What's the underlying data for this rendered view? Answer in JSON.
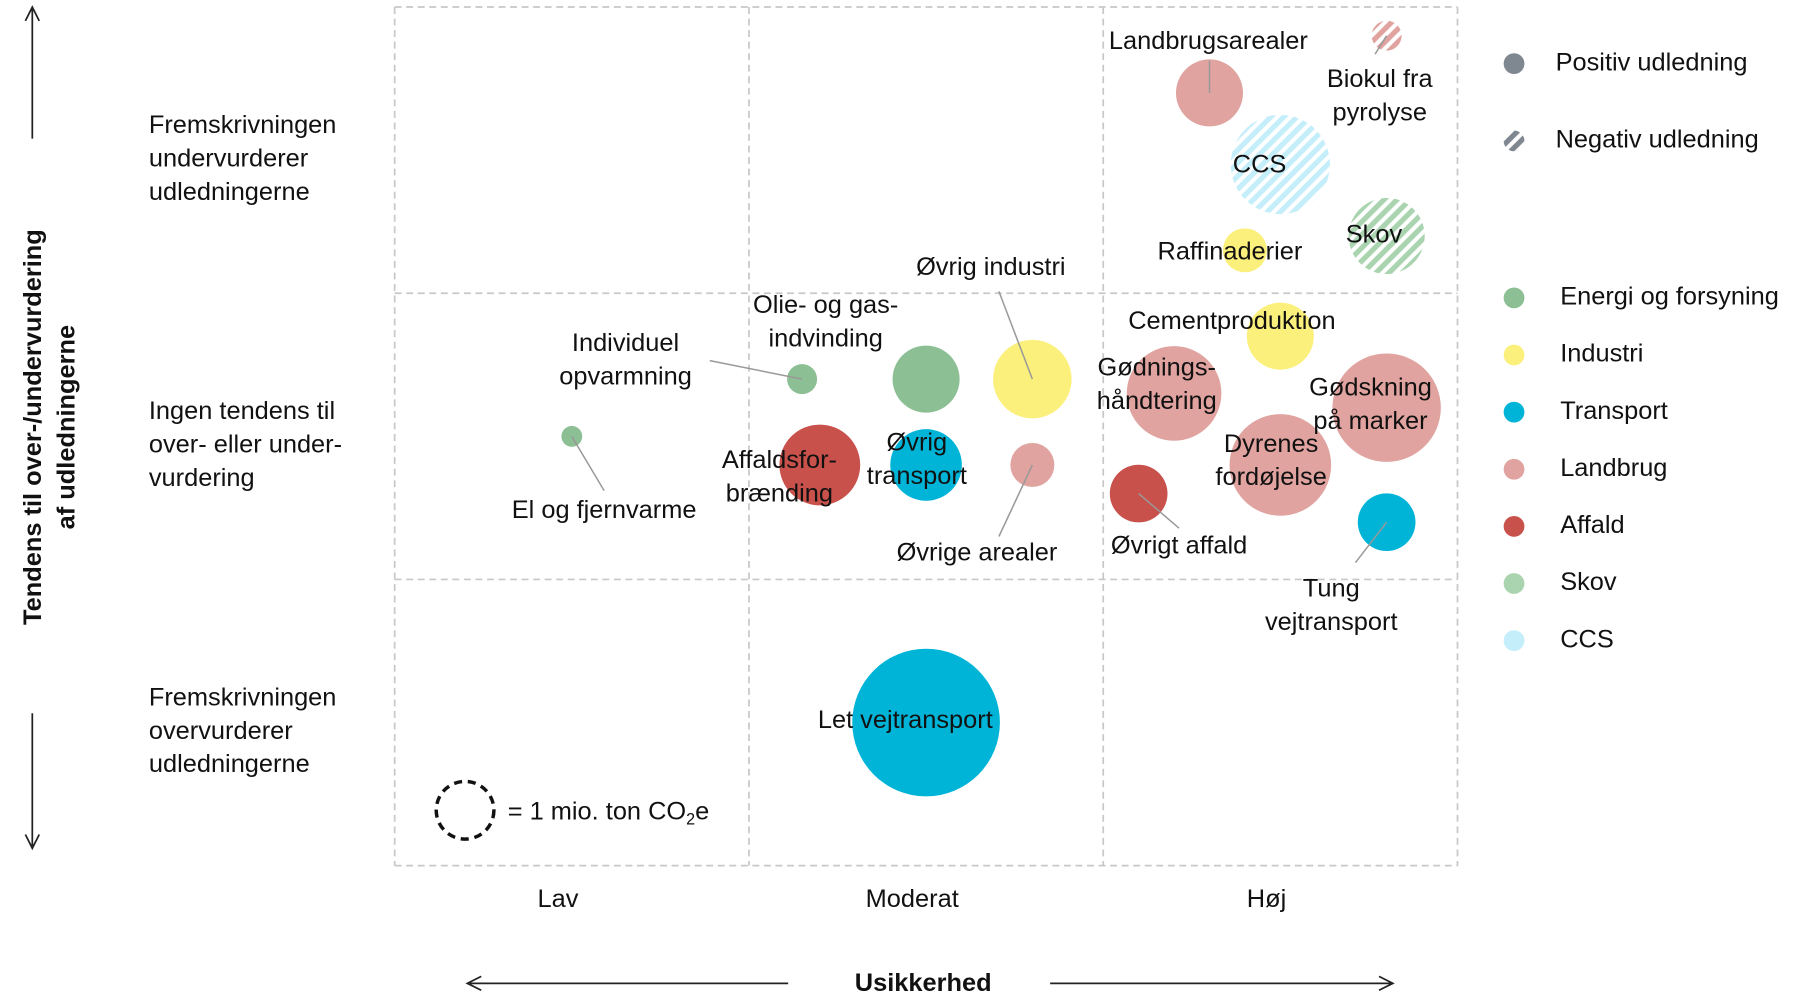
{
  "chart_data": {
    "type": "bubble",
    "xlabel": "Usikkerhed",
    "ylabel": "Tendens til over-/undervurdering\naf udledningerne",
    "xlim": [
      0,
      3
    ],
    "ylim": [
      0,
      3
    ],
    "xticks": [
      {
        "value": 0.5,
        "label": "Lav"
      },
      {
        "value": 1.5,
        "label": "Moderat"
      },
      {
        "value": 2.5,
        "label": "Høj"
      }
    ],
    "yticks": [
      {
        "value": 0.5,
        "label": "Fremskrivningen\novervurderer\nudledningerne"
      },
      {
        "value": 1.5,
        "label": "Ingen tendens til\nover- eller under-\nvurdering"
      },
      {
        "value": 2.5,
        "label": "Fremskrivningen\nundervurderer\nudledningerne"
      }
    ],
    "grid": true,
    "size_legend": {
      "value": 1,
      "label": "= 1 mio. ton CO",
      "sub": "2",
      "suffix": "e"
    },
    "emission_legend": [
      {
        "name": "Positiv udledning",
        "color": "#7f8790",
        "negative": false
      },
      {
        "name": "Negativ udledning",
        "color": "#7f8790",
        "negative": true
      }
    ],
    "series": [
      {
        "name": "Energi og forsyning",
        "color": "#8cbf93"
      },
      {
        "name": "Industri",
        "color": "#fbf07c"
      },
      {
        "name": "Transport",
        "color": "#00b4d8"
      },
      {
        "name": "Landbrug",
        "color": "#e0a39f"
      },
      {
        "name": "Affald",
        "color": "#c8514b"
      },
      {
        "name": "Skov",
        "color": "#a9d4af"
      },
      {
        "name": "CCS",
        "color": "#c4eefa"
      }
    ],
    "bubbles": [
      {
        "label": "El og fjernvarme",
        "sector": 0,
        "x": 0.5,
        "y": 1.5,
        "size": 0.13,
        "negative": false
      },
      {
        "label": "Individuel\nopvarmning",
        "sector": 0,
        "x": 1.15,
        "y": 1.7,
        "size": 0.27,
        "negative": false
      },
      {
        "label": "Olie- og gas-\nindvinding",
        "sector": 0,
        "x": 1.5,
        "y": 1.7,
        "size": 1.35,
        "negative": false
      },
      {
        "label": "Øvrig industri",
        "sector": 1,
        "x": 1.8,
        "y": 1.7,
        "size": 1.85,
        "negative": false
      },
      {
        "label": "Affaldsfor-\nbrænding",
        "sector": 4,
        "x": 1.2,
        "y": 1.4,
        "size": 1.96,
        "negative": false
      },
      {
        "label": "Øvrig\ntransport",
        "sector": 2,
        "x": 1.5,
        "y": 1.4,
        "size": 1.54,
        "negative": false
      },
      {
        "label": "Øvrige arealer",
        "sector": 3,
        "x": 1.8,
        "y": 1.4,
        "size": 0.58,
        "negative": false
      },
      {
        "label": "Let vejtransport",
        "sector": 2,
        "x": 1.5,
        "y": 0.5,
        "size": 6.55,
        "negative": false
      },
      {
        "label": "Landbrugsarealer",
        "sector": 3,
        "x": 2.3,
        "y": 2.7,
        "size": 1.35,
        "negative": false
      },
      {
        "label": "Biokul fra\npyrolyse",
        "sector": 3,
        "x": 2.8,
        "y": 2.9,
        "size": 0.27,
        "negative": true
      },
      {
        "label": "CCS",
        "sector": 6,
        "x": 2.5,
        "y": 2.45,
        "size": 2.96,
        "negative": true
      },
      {
        "label": "Raffinaderier",
        "sector": 1,
        "x": 2.4,
        "y": 2.15,
        "size": 0.58,
        "negative": false
      },
      {
        "label": "Skov",
        "sector": 5,
        "x": 2.8,
        "y": 2.2,
        "size": 1.74,
        "negative": true
      },
      {
        "label": "Cementproduktion",
        "sector": 1,
        "x": 2.5,
        "y": 1.85,
        "size": 1.35,
        "negative": false
      },
      {
        "label": "Gødnings-\nhåndtering",
        "sector": 3,
        "x": 2.2,
        "y": 1.65,
        "size": 2.69,
        "negative": false
      },
      {
        "label": "Gødskning\npå marker",
        "sector": 3,
        "x": 2.8,
        "y": 1.6,
        "size": 3.53,
        "negative": false
      },
      {
        "label": "Dyrenes\nfordøjelse",
        "sector": 3,
        "x": 2.5,
        "y": 1.4,
        "size": 3.1,
        "negative": false
      },
      {
        "label": "Øvrigt affald",
        "sector": 4,
        "x": 2.1,
        "y": 1.3,
        "size": 1.0,
        "negative": false
      },
      {
        "label": "Tung\nvejtransport",
        "sector": 2,
        "x": 2.8,
        "y": 1.2,
        "size": 1.0,
        "negative": false
      }
    ]
  }
}
